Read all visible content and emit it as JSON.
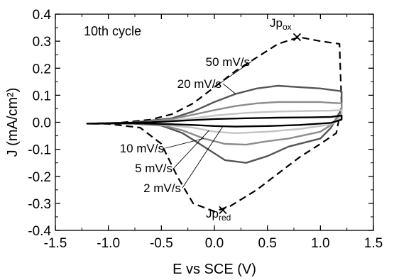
{
  "chart_data": {
    "type": "line",
    "xlabel": "E vs SCE (V)",
    "ylabel": "J (mA/cm²)",
    "xlim": [
      -1.5,
      1.5
    ],
    "ylim": [
      -0.4,
      0.4
    ],
    "xticks": [
      -1.5,
      -1.0,
      -0.5,
      0.0,
      0.5,
      1.0,
      1.5
    ],
    "xtick_labels": [
      "-1.5",
      "-1.0",
      "-0.5",
      "0.0",
      "0.5",
      "1.0",
      "1.5"
    ],
    "yticks": [
      -0.4,
      -0.3,
      -0.2,
      -0.1,
      0.0,
      0.1,
      0.2,
      0.3,
      0.4
    ],
    "ytick_labels": [
      "-0.4",
      "-0.3",
      "-0.2",
      "-0.1",
      "0.0",
      "0.1",
      "0.2",
      "0.3",
      "0.4"
    ],
    "grid": false,
    "panel_label": "10th cycle",
    "series": [
      {
        "name": "50 mV/s",
        "style": "dashed",
        "color": "#000000",
        "x": [
          -1.2,
          -0.9,
          -0.6,
          -0.4,
          -0.2,
          0.0,
          0.2,
          0.4,
          0.6,
          0.8,
          1.0,
          1.18,
          1.2,
          1.15,
          1.0,
          0.8,
          0.6,
          0.4,
          0.15,
          0.0,
          -0.2,
          -0.35,
          -0.5,
          -0.7,
          -1.0,
          -1.2
        ],
        "y": [
          -0.005,
          -0.002,
          0.01,
          0.03,
          0.07,
          0.13,
          0.19,
          0.24,
          0.29,
          0.315,
          0.3,
          0.29,
          0.06,
          -0.04,
          -0.08,
          -0.13,
          -0.19,
          -0.25,
          -0.31,
          -0.33,
          -0.3,
          -0.2,
          -0.08,
          -0.02,
          -0.006,
          -0.005
        ]
      },
      {
        "name": "20 mV/s",
        "style": "solid",
        "color": "#555555",
        "x": [
          -1.2,
          -0.8,
          -0.4,
          -0.2,
          0.0,
          0.2,
          0.4,
          0.6,
          0.8,
          1.0,
          1.1,
          1.2,
          1.2,
          1.1,
          1.0,
          0.7,
          0.5,
          0.3,
          0.1,
          -0.1,
          -0.3,
          -0.5,
          -0.8,
          -1.2
        ],
        "y": [
          -0.005,
          -0.002,
          0.015,
          0.04,
          0.075,
          0.105,
          0.125,
          0.135,
          0.13,
          0.125,
          0.12,
          0.115,
          0.05,
          -0.02,
          -0.06,
          -0.09,
          -0.125,
          -0.15,
          -0.14,
          -0.09,
          -0.04,
          -0.012,
          -0.004,
          -0.005
        ]
      },
      {
        "name": "10 mV/s",
        "style": "solid",
        "color": "#8c8c8c",
        "x": [
          -1.2,
          -0.7,
          -0.4,
          -0.2,
          0.0,
          0.2,
          0.4,
          0.6,
          0.8,
          1.0,
          1.1,
          1.2,
          1.2,
          1.1,
          1.0,
          0.7,
          0.5,
          0.3,
          0.1,
          -0.1,
          -0.3,
          -0.5,
          -0.8,
          -1.2
        ],
        "y": [
          -0.005,
          -0.002,
          0.012,
          0.028,
          0.045,
          0.06,
          0.07,
          0.075,
          0.075,
          0.075,
          0.072,
          0.07,
          0.035,
          -0.01,
          -0.035,
          -0.06,
          -0.07,
          -0.083,
          -0.08,
          -0.06,
          -0.03,
          -0.01,
          -0.004,
          -0.005
        ]
      },
      {
        "name": "5 mV/s",
        "style": "solid",
        "color": "#c4c4c4",
        "x": [
          -1.2,
          -0.6,
          -0.3,
          0.0,
          0.3,
          0.6,
          0.9,
          1.1,
          1.2,
          1.2,
          1.1,
          0.8,
          0.5,
          0.2,
          0.0,
          -0.2,
          -0.5,
          -0.8,
          -1.2
        ],
        "y": [
          -0.005,
          0.0,
          0.01,
          0.025,
          0.035,
          0.04,
          0.042,
          0.043,
          0.045,
          0.02,
          -0.008,
          -0.025,
          -0.035,
          -0.04,
          -0.035,
          -0.02,
          -0.008,
          -0.004,
          -0.005
        ]
      },
      {
        "name": "2 mV/s",
        "style": "solid",
        "color": "#000000",
        "x": [
          -1.2,
          -0.6,
          -0.3,
          0.0,
          0.3,
          0.6,
          0.9,
          1.1,
          1.2,
          1.2,
          1.1,
          0.8,
          0.5,
          0.2,
          0.0,
          -0.2,
          -0.5,
          -0.8,
          -1.2
        ],
        "y": [
          -0.005,
          0.0,
          0.006,
          0.012,
          0.015,
          0.017,
          0.018,
          0.02,
          0.025,
          0.01,
          -0.002,
          -0.01,
          -0.014,
          -0.016,
          -0.014,
          -0.01,
          -0.006,
          -0.004,
          -0.005
        ]
      }
    ],
    "markers": [
      {
        "label": "Jp",
        "sub": "ox",
        "x": 0.78,
        "y": 0.315
      },
      {
        "label": "Jp",
        "sub": "red",
        "x": 0.08,
        "y": -0.325
      }
    ],
    "annotations": [
      {
        "text": "50 mV/s",
        "target_x": 0.0,
        "target_y": 0.13
      },
      {
        "text": "20 mV/s",
        "target_x": 0.2,
        "target_y": 0.105
      },
      {
        "text": "10 mV/s",
        "target_x": -0.1,
        "target_y": -0.06
      },
      {
        "text": "5 mV/s",
        "target_x": -0.05,
        "target_y": -0.03
      },
      {
        "text": "2 mV/s",
        "target_x": 0.08,
        "target_y": -0.015
      }
    ]
  }
}
